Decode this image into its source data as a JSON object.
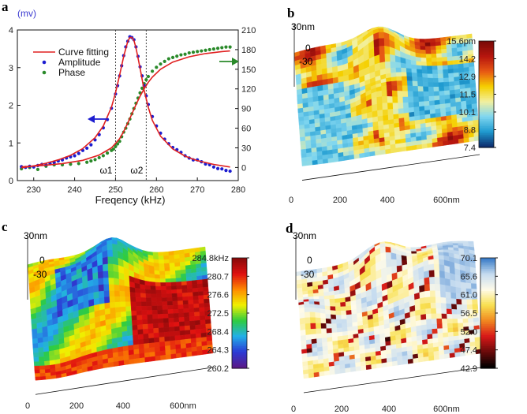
{
  "chart_data": [
    {
      "panel": "a",
      "type": "line",
      "xlabel": "Freqency (kHz)",
      "y_left_label": "(mv)",
      "xlim": [
        226,
        280
      ],
      "ylim_left": [
        0,
        4
      ],
      "ylim_right": [
        -20,
        210
      ],
      "x_ticks": [
        "230",
        "240",
        "250",
        "260",
        "270",
        "280"
      ],
      "y_left_ticks": [
        "0",
        "1",
        "2",
        "3",
        "4"
      ],
      "y_right_ticks": [
        "0",
        "30",
        "60",
        "90",
        "120",
        "150",
        "180",
        "210"
      ],
      "markers": [
        {
          "label": "ω1",
          "x": 250
        },
        {
          "label": "ω2",
          "x": 257.5
        }
      ],
      "legend": [
        "Curve fitting",
        "Amplitude",
        "Phase"
      ],
      "legend_position": "top-left",
      "series": [
        {
          "name": "Curve fitting",
          "axis": "left",
          "color": "#e02020",
          "kind": "line",
          "model": "lorentzian",
          "x": [
            227,
            230,
            233,
            236,
            239,
            242,
            245,
            247,
            249,
            250,
            251,
            252,
            253,
            253.5,
            254,
            254.5,
            255,
            256,
            257,
            258,
            259,
            261,
            264,
            267,
            270,
            274,
            278
          ],
          "y": [
            0.34,
            0.39,
            0.46,
            0.55,
            0.67,
            0.85,
            1.14,
            1.45,
            1.95,
            2.33,
            2.8,
            3.3,
            3.7,
            3.8,
            3.8,
            3.72,
            3.52,
            2.98,
            2.4,
            1.95,
            1.6,
            1.18,
            0.84,
            0.65,
            0.53,
            0.43,
            0.36
          ]
        },
        {
          "name": "Curve fitting (phase)",
          "axis": "right",
          "color": "#e02020",
          "kind": "line",
          "x": [
            227,
            232,
            237,
            242,
            246,
            249,
            251,
            252,
            253,
            254,
            255,
            256,
            257,
            258,
            259,
            261,
            264,
            268,
            272,
            276,
            278
          ],
          "y": [
            1,
            3,
            6,
            11,
            19,
            30,
            44,
            55,
            68,
            82,
            96,
            109,
            120,
            130,
            138,
            150,
            161,
            169,
            174,
            177,
            178
          ]
        },
        {
          "name": "Amplitude",
          "axis": "left",
          "color": "#1c1cd0",
          "kind": "scatter",
          "x": [
            227,
            228,
            229,
            230,
            231,
            232,
            233,
            234,
            235,
            236,
            237,
            238,
            239,
            240,
            241,
            242,
            243,
            244,
            245,
            246,
            247,
            248,
            249,
            250,
            250.5,
            251,
            251.5,
            252,
            252.5,
            253,
            253.5,
            254,
            254.5,
            255,
            255.5,
            256,
            256.5,
            257,
            257.5,
            258,
            259,
            260,
            261,
            262,
            263,
            264,
            265,
            266,
            267,
            268,
            269,
            270,
            271,
            272,
            273,
            274,
            275,
            276,
            277,
            278
          ],
          "y": [
            0.37,
            0.35,
            0.38,
            0.36,
            0.4,
            0.43,
            0.42,
            0.45,
            0.48,
            0.52,
            0.55,
            0.6,
            0.63,
            0.66,
            0.72,
            0.8,
            0.86,
            0.95,
            1.08,
            1.22,
            1.4,
            1.62,
            1.92,
            2.3,
            2.52,
            2.78,
            3.05,
            3.32,
            3.55,
            3.7,
            3.82,
            3.8,
            3.74,
            3.55,
            3.3,
            3.02,
            2.78,
            2.52,
            2.25,
            2.02,
            1.7,
            1.45,
            1.26,
            1.1,
            0.98,
            0.88,
            0.82,
            0.75,
            0.66,
            0.6,
            0.55,
            0.55,
            0.5,
            0.44,
            0.42,
            0.36,
            0.32,
            0.31,
            0.27,
            0.25
          ]
        },
        {
          "name": "Phase",
          "axis": "right",
          "color": "#2a8a2a",
          "kind": "scatter",
          "x": [
            227,
            229,
            231,
            233,
            235,
            237,
            239,
            241,
            243,
            244,
            245,
            246,
            247,
            248,
            249,
            249.5,
            250,
            250.5,
            251,
            251.5,
            252,
            252.5,
            253,
            253.5,
            254,
            254.5,
            255,
            255.5,
            256,
            256.5,
            257,
            257.5,
            258,
            259,
            260,
            261,
            262,
            263,
            264,
            265,
            266,
            267,
            268,
            269,
            270,
            271,
            272,
            273,
            274,
            275,
            276,
            277,
            278
          ],
          "y": [
            -2,
            0,
            -3,
            2,
            4,
            4,
            5,
            6,
            8,
            10,
            12,
            15,
            18,
            22,
            26,
            28,
            32,
            36,
            40,
            47,
            54,
            60,
            67,
            74,
            82,
            90,
            98,
            106,
            114,
            121,
            128,
            134,
            139,
            147,
            153,
            158,
            162,
            166,
            168,
            170,
            172,
            173,
            175,
            176,
            177,
            178,
            179,
            180,
            181,
            182,
            183,
            184,
            184
          ]
        }
      ]
    },
    {
      "panel": "b",
      "type": "heatmap",
      "colorbar_ticks": [
        "15.6pm",
        "14.2",
        "12.9",
        "11.5",
        "10.1",
        "8.8",
        "7.4"
      ],
      "colormap": [
        "#0c2d6e",
        "#1f9bd0",
        "#7fd6f0",
        "#f2f0a0",
        "#f5d000",
        "#e85a14",
        "#b8160e",
        "#7a0a08"
      ]
    },
    {
      "panel": "c",
      "type": "heatmap",
      "colorbar_ticks": [
        "284.8kHz",
        "280.7",
        "276.6",
        "272.5",
        "268.4",
        "264.3",
        "260.2"
      ],
      "colormap": [
        "#5a1a8a",
        "#2b3bd6",
        "#22b0e8",
        "#2ecc40",
        "#f0f000",
        "#ff8c00",
        "#e01010",
        "#8a0a0a"
      ]
    },
    {
      "panel": "d",
      "type": "heatmap",
      "colorbar_ticks": [
        "70.1",
        "65.6",
        "61.0",
        "56.5",
        "52.0",
        "47.4",
        "42.9"
      ],
      "colormap": [
        "#000000",
        "#6a0a0a",
        "#d81818",
        "#f08820",
        "#f8e050",
        "#fffbe8",
        "#c6dcf0",
        "#3a7cc8"
      ]
    }
  ],
  "panels": {
    "a": {
      "letter": "a"
    },
    "b": {
      "letter": "b",
      "z_unit": "30nm",
      "z_zero": "0",
      "z_min": "-30",
      "x_ticks": [
        "0",
        "200",
        "400",
        "600nm"
      ]
    },
    "c": {
      "letter": "c",
      "z_unit": "30nm",
      "z_zero": "0",
      "z_min": "-30",
      "x_ticks": [
        "0",
        "200",
        "400",
        "600nm"
      ]
    },
    "d": {
      "letter": "d",
      "z_unit": "30nm",
      "z_zero": "0",
      "z_min": "-30",
      "x_ticks": [
        "0",
        "200",
        "400",
        "600nm"
      ]
    }
  },
  "colors": {
    "amplitude_axis": "#3a3ad0",
    "phase_axis": "#2a8a2a",
    "fit": "#e02020"
  }
}
